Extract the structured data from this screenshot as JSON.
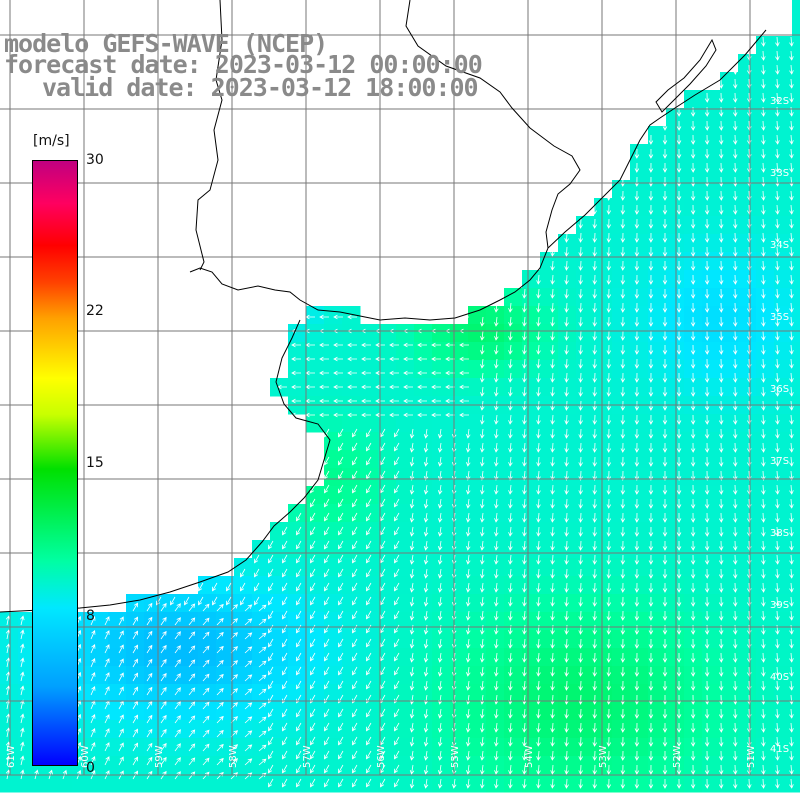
{
  "title": {
    "line1": "modelo GEFS-WAVE (NCEP)",
    "line2": "forecast date: 2023-03-12 00:00:00",
    "line3": "valid date: 2023-03-12 18:00:00"
  },
  "colorbar": {
    "unit": "[m/s]",
    "ticks": [
      "30",
      "22",
      "15",
      "8",
      "0"
    ],
    "tick_values": [
      30,
      22,
      15,
      8,
      0
    ],
    "min": 0,
    "max": 30
  },
  "grid": {
    "lat_labels": [
      "32S",
      "33S",
      "34S",
      "35S",
      "36S",
      "37S",
      "38S",
      "39S",
      "40S",
      "41S"
    ],
    "lon_labels": [
      "61W",
      "60W",
      "59W",
      "58W",
      "57W",
      "56W",
      "55W",
      "54W",
      "53W",
      "52W",
      "51W"
    ]
  },
  "colors": {
    "land": "#ffffff",
    "grid": "#777777",
    "coast": "#000000",
    "arrows": "#ffffff",
    "title_text": "#8a8a8a"
  }
}
